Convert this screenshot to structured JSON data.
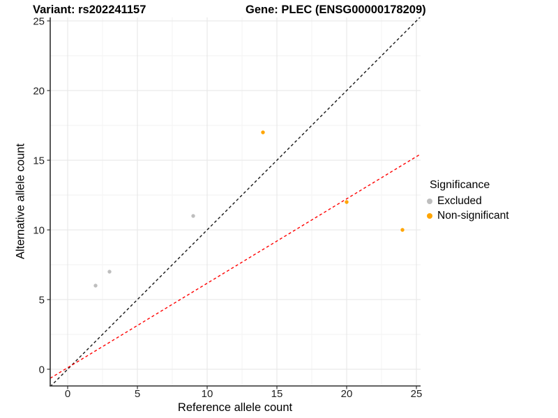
{
  "titles": {
    "variant": "Variant: rs202241157",
    "gene": "Gene: PLEC (ENSG00000178209)"
  },
  "chart_data": {
    "type": "scatter",
    "title_left": "Variant: rs202241157",
    "title_right": "Gene: PLEC (ENSG00000178209)",
    "xlabel": "Reference allele count",
    "ylabel": "Alternative allele count",
    "xlim": [
      -1.25,
      25.3
    ],
    "ylim": [
      -1.2,
      25.25
    ],
    "x_ticks": [
      0,
      5,
      10,
      15,
      20,
      25
    ],
    "y_ticks": [
      0,
      5,
      10,
      15,
      20,
      25
    ],
    "grid": "major and minor gridlines on white panel",
    "series": [
      {
        "name": "Excluded",
        "color": "#bebebe",
        "points": [
          [
            2,
            6
          ],
          [
            3,
            7
          ],
          [
            9,
            11
          ]
        ]
      },
      {
        "name": "Non-significant",
        "color": "#ffa500",
        "points": [
          [
            14,
            17
          ],
          [
            20,
            12
          ],
          [
            24,
            10
          ]
        ]
      }
    ],
    "lines": [
      {
        "name": "identity-line",
        "color": "#141414",
        "style": "dashed",
        "slope": 1,
        "intercept": 0
      },
      {
        "name": "expected-ratio-line",
        "color": "#ff0000",
        "style": "dashed",
        "slope": 0.606,
        "intercept": 0.11
      }
    ],
    "legend": {
      "title": "Significance",
      "position": "right",
      "entries": [
        {
          "label": "Excluded",
          "color": "#bebebe"
        },
        {
          "label": "Non-significant",
          "color": "#ffa500"
        }
      ]
    },
    "colors": {
      "major_grid": "#e6e6e6",
      "minor_grid": "#f2f2f2",
      "axis_line": "#2e2e2e",
      "tick_text": "#1f1f1f"
    }
  }
}
